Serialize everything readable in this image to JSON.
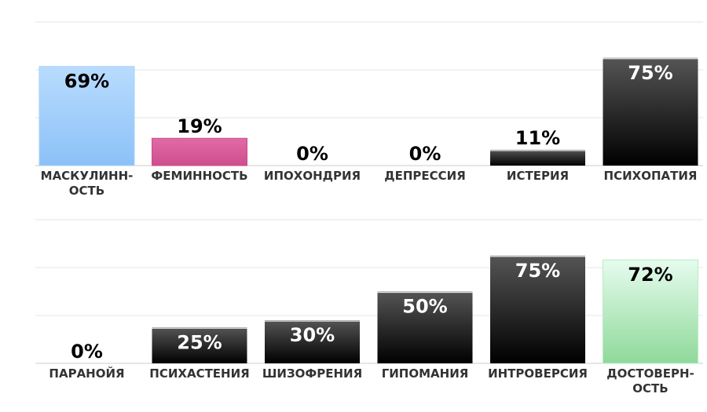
{
  "chart_data": [
    {
      "type": "bar",
      "categories": [
        "МАСКУЛИНН-|ОСТЬ",
        "ФЕМИННОСТЬ",
        "ИПОХОНДРИЯ",
        "ДЕПРЕССИЯ",
        "ИСТЕРИЯ",
        "ПСИХОПАТИЯ"
      ],
      "values": [
        69,
        19,
        0,
        0,
        11,
        75
      ],
      "value_labels": [
        "69%",
        "19%",
        "0%",
        "0%",
        "11%",
        "75%"
      ],
      "bar_styles": [
        "blue",
        "pink",
        "dark",
        "dark",
        "dark",
        "dark"
      ],
      "ylim": [
        0,
        100
      ],
      "grid": true
    },
    {
      "type": "bar",
      "categories": [
        "ПАРАНОЙЯ",
        "ПСИХАСТЕНИЯ",
        "ШИЗОФРЕНИЯ",
        "ГИПОМАНИЯ",
        "ИНТРОВЕРСИЯ",
        "ДОСТОВЕРН-|ОСТЬ"
      ],
      "values": [
        0,
        25,
        30,
        50,
        75,
        72
      ],
      "value_labels": [
        "0%",
        "25%",
        "30%",
        "50%",
        "75%",
        "72%"
      ],
      "bar_styles": [
        "dark",
        "dark",
        "dark",
        "dark",
        "dark",
        "green"
      ],
      "ylim": [
        0,
        100
      ],
      "grid": true
    }
  ],
  "colors": {
    "grid": "#e6e6e6",
    "axis": "#cccccc",
    "dark_top": "#555555",
    "dark_bottom": "#000000",
    "blue_top": "#b8dcff",
    "blue_bottom": "#8cc1f7",
    "pink_top": "#e06aa6",
    "pink_bottom": "#d04e8e",
    "green_top": "#e6fcee",
    "green_bottom": "#8fd99a",
    "label_dark": "#000000",
    "label_light": "#ffffff"
  }
}
